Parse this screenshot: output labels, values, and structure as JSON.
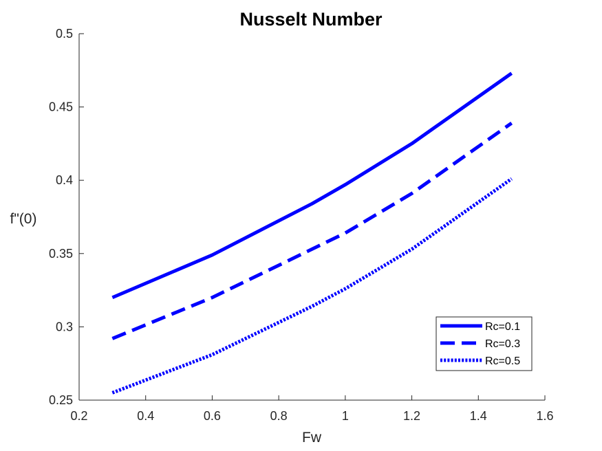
{
  "chart_data": {
    "type": "line",
    "title": "Nusselt Number",
    "xlabel": "Fw",
    "ylabel": "f\"(0)",
    "xlim": [
      0.2,
      1.6
    ],
    "ylim": [
      0.25,
      0.5
    ],
    "xticks": [
      0.2,
      0.4,
      0.6,
      0.8,
      1,
      1.2,
      1.4,
      1.6
    ],
    "yticks": [
      0.25,
      0.3,
      0.35,
      0.4,
      0.45,
      0.5
    ],
    "xtick_labels": [
      "0.2",
      "0.4",
      "0.6",
      "0.8",
      "1",
      "1.2",
      "1.4",
      "1.6"
    ],
    "ytick_labels": [
      "0.25",
      "0.3",
      "0.35",
      "0.4",
      "0.45",
      "0.5"
    ],
    "grid": false,
    "legend_position": "bottom-right",
    "x": [
      0.3,
      0.6,
      0.9,
      1.0,
      1.2,
      1.5
    ],
    "series": [
      {
        "name": "Rc=0.1",
        "style": "solid",
        "color": "#0000ff",
        "values": [
          0.32,
          0.349,
          0.384,
          0.397,
          0.425,
          0.473
        ]
      },
      {
        "name": "Rc=0.3",
        "style": "dashed",
        "color": "#0000ff",
        "values": [
          0.292,
          0.32,
          0.353,
          0.364,
          0.391,
          0.439
        ]
      },
      {
        "name": "Rc=0.5",
        "style": "dotted",
        "color": "#0000ff",
        "values": [
          0.255,
          0.281,
          0.314,
          0.326,
          0.353,
          0.401
        ]
      }
    ]
  }
}
